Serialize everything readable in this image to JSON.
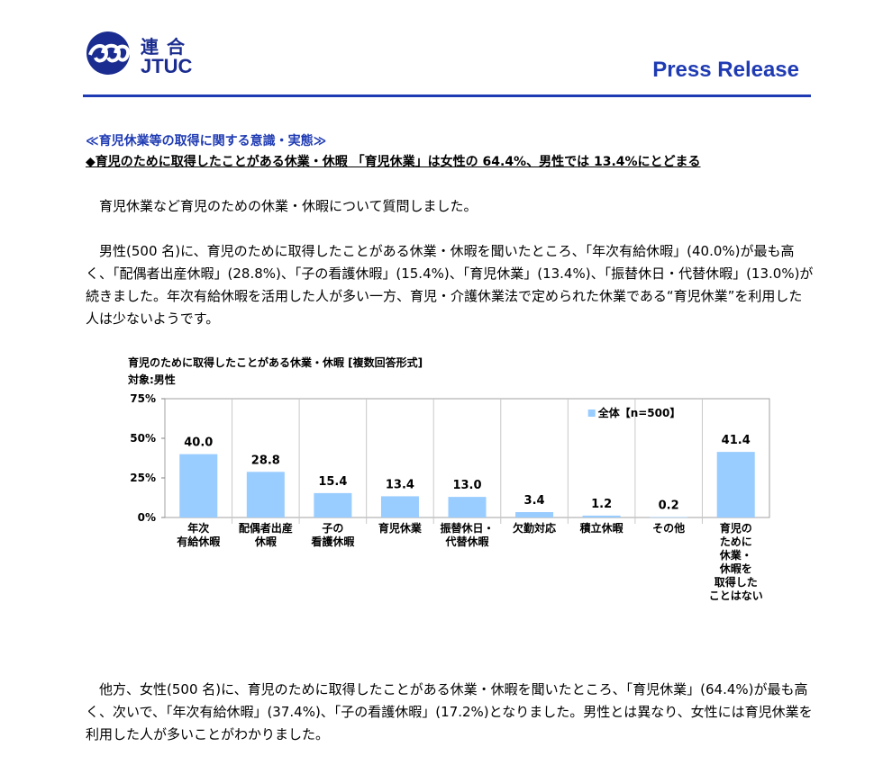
{
  "header": {
    "logo_kanji": "連合",
    "logo_latin": "JTUC",
    "press_release": "Press Release",
    "colors": {
      "brand": "#1F3BB3",
      "logo": "#1A2C8F"
    }
  },
  "section_title": "≪育児休業等の取得に関する意識・実態≫",
  "headline": "◆育児のために取得したことがある休業・休暇 「育児休業」は女性の 64.4%、男性では 13.4%にとどまる",
  "paragraphs": [
    "育児休業など育児のための休業・休暇について質問しました。",
    "男性(500 名)に、育児のために取得したことがある休業・休暇を聞いたところ、「年次有給休暇」(40.0%)が最も高く、「配偶者出産休暇」(28.8%)、「子の看護休暇」(15.4%)、「育児休業」(13.4%)、「振替休日・代替休暇」(13.0%)が続きました。年次有給休暇を活用した人が多い一方、育児・介護休業法で定められた休業である“育児休業”を利用した人は少ないようです。",
    "他方、女性(500 名)に、育児のために取得したことがある休業・休暇を聞いたところ、「育児休業」(64.4%)が最も高く、次いで、「年次有給休暇」(37.4%)、「子の看護休暇」(17.2%)となりました。男性とは異なり、女性には育児休業を利用した人が多いことがわかりました。"
  ],
  "chart_data": {
    "type": "bar",
    "title": "育児のために取得したことがある休業・休暇 [複数回答形式]",
    "subtitle": "対象:男性",
    "categories": [
      "年次\n有給休暇",
      "配偶者出産\n休暇",
      "子の\n看護休暇",
      "育児休業",
      "振替休日・\n代替休暇",
      "欠勤対応",
      "積立休暇",
      "その他",
      "育児の\nために\n休業・\n休暇を\n取得した\nことはない"
    ],
    "series": [
      {
        "name": "全体【n=500】",
        "values": [
          40.0,
          28.8,
          15.4,
          13.4,
          13.0,
          3.4,
          1.2,
          0.2,
          41.4
        ]
      }
    ],
    "value_labels": [
      "40.0",
      "28.8",
      "15.4",
      "13.4",
      "13.0",
      "3.4",
      "1.2",
      "0.2",
      "41.4"
    ],
    "yticks": [
      "0%",
      "25%",
      "50%",
      "75%"
    ],
    "ylim": [
      0,
      75
    ],
    "legend_position": "top-right",
    "grid": false,
    "bar_color": "#99CCFF"
  }
}
